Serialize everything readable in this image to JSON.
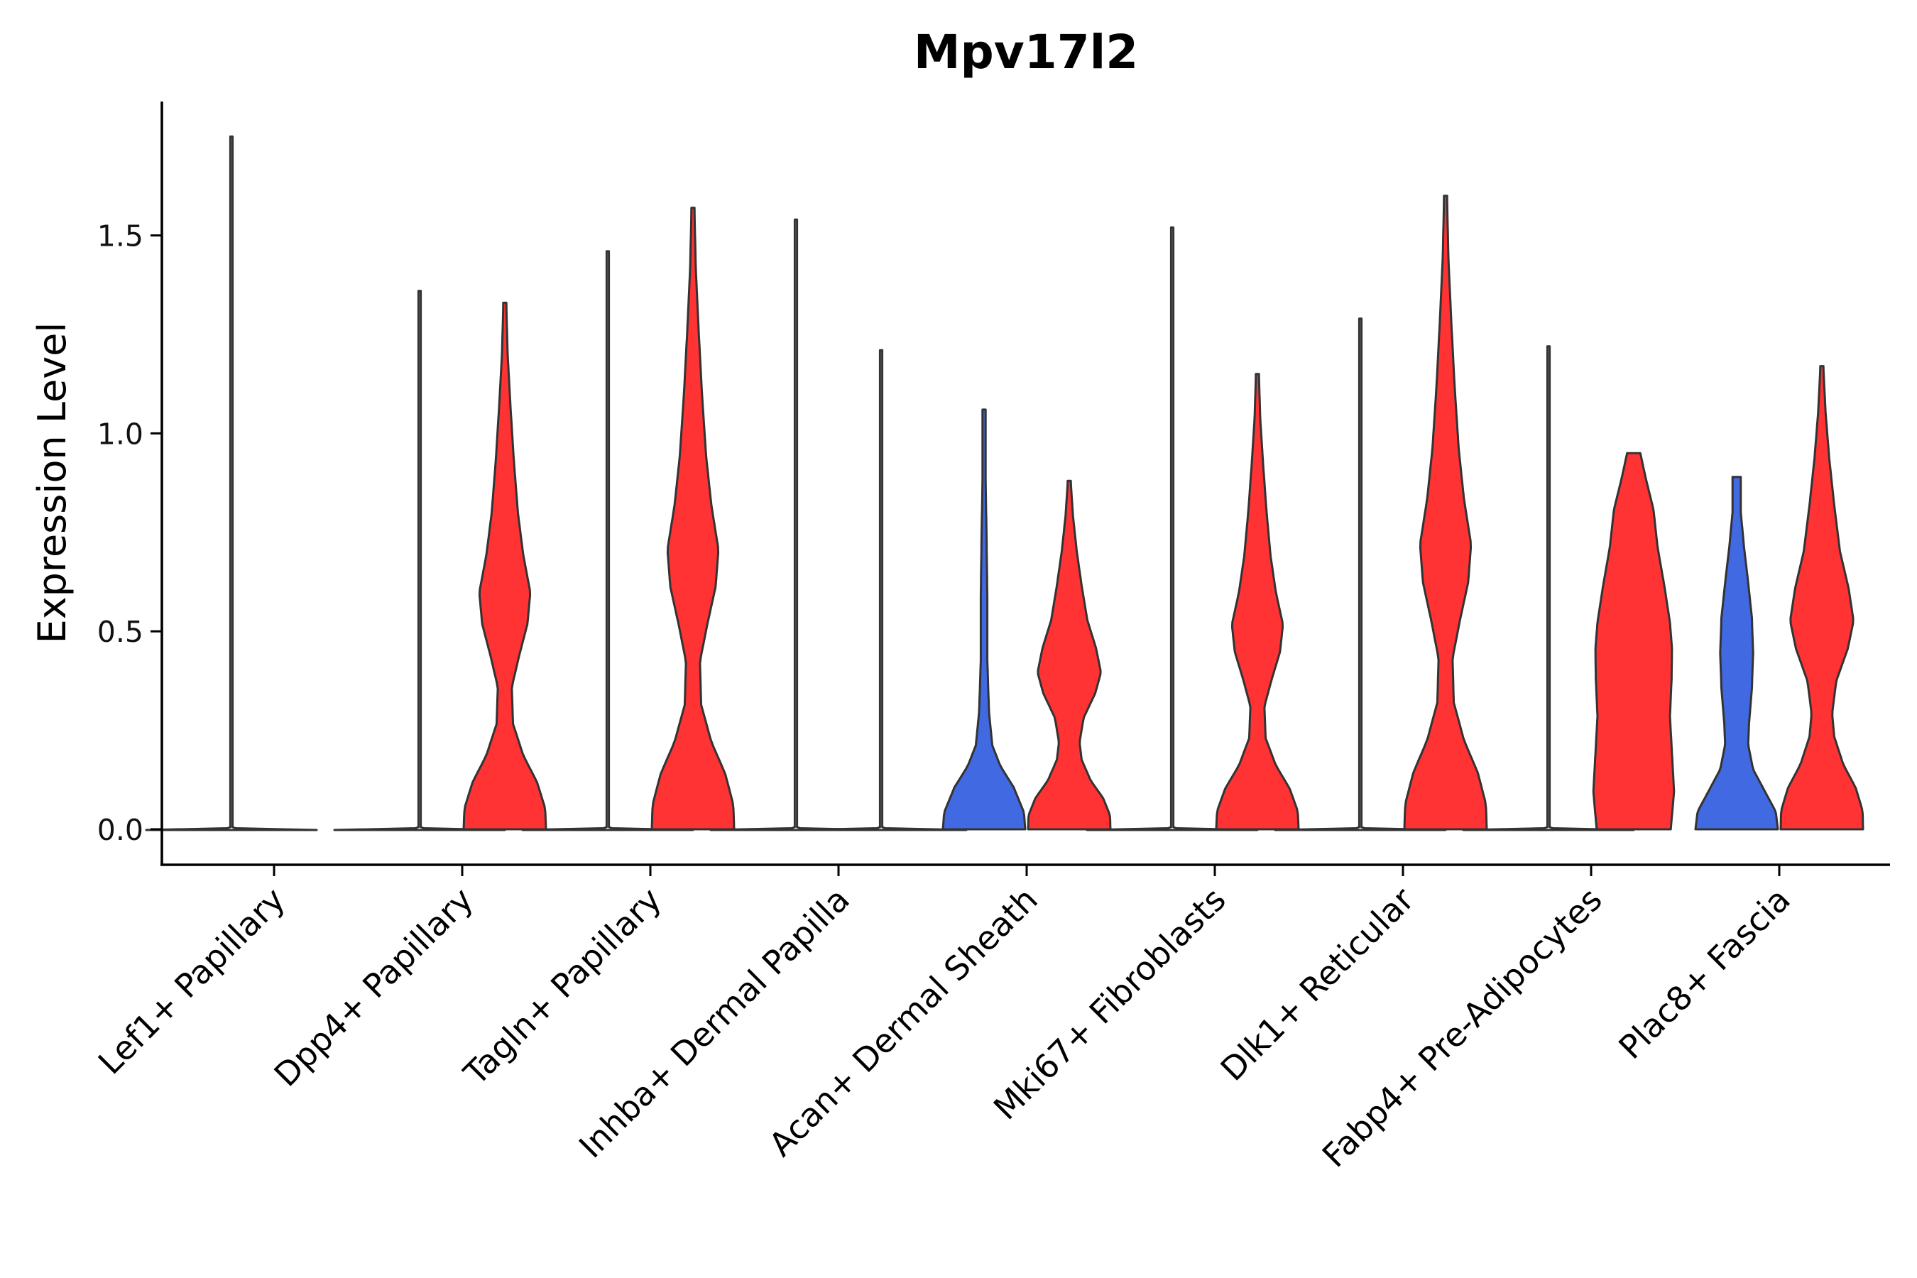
{
  "chart_data": {
    "type": "violin",
    "title": "Mpv17l2",
    "xlabel": "",
    "ylabel": "Expression Level",
    "ylim": [
      -0.09,
      1.85
    ],
    "yticks": [
      0.0,
      0.5,
      1.0,
      1.5
    ],
    "ytick_labels": [
      "0.0",
      "0.5",
      "1.0",
      "1.5"
    ],
    "grid": false,
    "legend": "none",
    "colors": {
      "group_a": "#4169E1",
      "group_b": "#FF3333",
      "outline": "#333333"
    },
    "categories": [
      "Lef1+ Papillary",
      "Dpp4+ Papillary",
      "Tagln+ Papillary",
      "Inhba+ Dermal Papilla",
      "Acan+ Dermal Sheath",
      "Mki67+ Fibroblasts",
      "Dlk1+ Reticular",
      "Fabp4+ Pre-Adipocytes",
      "Plac8+ Fascia"
    ],
    "series": [
      {
        "name": "group_a",
        "color": "#4169E1",
        "max_values": [
          1.75,
          1.36,
          1.46,
          1.54,
          1.06,
          1.52,
          1.29,
          1.22,
          0.89
        ],
        "modes": [
          0.0,
          0.0,
          0.0,
          0.0,
          0.05,
          0.0,
          0.0,
          0.0,
          0.05
        ]
      },
      {
        "name": "group_b",
        "color": "#FF3333",
        "max_values": [
          null,
          1.33,
          1.57,
          1.21,
          0.88,
          1.15,
          1.6,
          0.95,
          1.17
        ],
        "modes": [
          null,
          0.05,
          0.05,
          0.0,
          0.05,
          0.05,
          0.05,
          0.45,
          0.05
        ]
      }
    ]
  }
}
